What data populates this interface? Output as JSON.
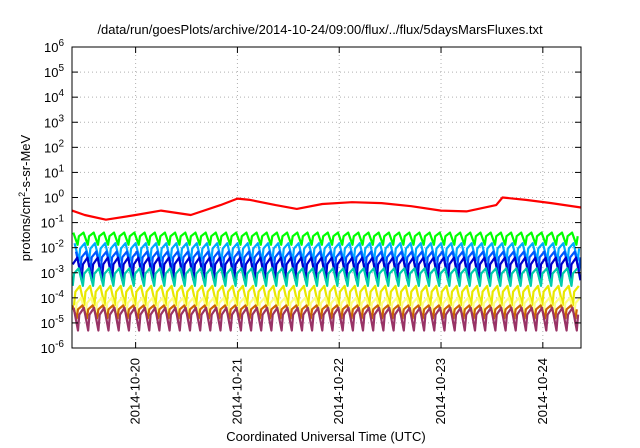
{
  "chart_data": {
    "type": "line",
    "title": "/data/run/goesPlots/archive/2014-10-24/09:00/flux/../flux/5daysMarsFluxes.txt",
    "xlabel": "Coordinated Universal Time (UTC)",
    "ylabel": {
      "base": "protons/cm",
      "sup": "2",
      "rest": "-s-sr-MeV"
    },
    "yscale": "log",
    "ylim": [
      1e-06,
      1000000.0
    ],
    "xlim": [
      "2014-10-19 09:00",
      "2014-10-24 09:00"
    ],
    "y_ticks": [
      {
        "value": 1e-06,
        "base": "10",
        "exp": "-6"
      },
      {
        "value": 1e-05,
        "base": "10",
        "exp": "-5"
      },
      {
        "value": 0.0001,
        "base": "10",
        "exp": "-4"
      },
      {
        "value": 0.001,
        "base": "10",
        "exp": "-3"
      },
      {
        "value": 0.01,
        "base": "10",
        "exp": "-2"
      },
      {
        "value": 0.1,
        "base": "10",
        "exp": "-1"
      },
      {
        "value": 1.0,
        "base": "10",
        "exp": "0"
      },
      {
        "value": 10.0,
        "base": "10",
        "exp": "1"
      },
      {
        "value": 100.0,
        "base": "10",
        "exp": "2"
      },
      {
        "value": 1000.0,
        "base": "10",
        "exp": "3"
      },
      {
        "value": 10000.0,
        "base": "10",
        "exp": "4"
      },
      {
        "value": 100000.0,
        "base": "10",
        "exp": "5"
      },
      {
        "value": 1000000.0,
        "base": "10",
        "exp": "6"
      }
    ],
    "x_ticks": [
      {
        "value": "2014-10-20 00:00",
        "label": "2014-10-20"
      },
      {
        "value": "2014-10-21 00:00",
        "label": "2014-10-21"
      },
      {
        "value": "2014-10-22 00:00",
        "label": "2014-10-22"
      },
      {
        "value": "2014-10-23 00:00",
        "label": "2014-10-23"
      },
      {
        "value": "2014-10-24 00:00",
        "label": "2014-10-24"
      }
    ],
    "grid": true,
    "legend": "none",
    "series": [
      {
        "color": "#ff0000",
        "values": [
          {
            "t": "2014-10-19 09:00",
            "y": 0.3
          },
          {
            "t": "2014-10-19 12:00",
            "y": 0.2
          },
          {
            "t": "2014-10-19 17:00",
            "y": 0.13
          },
          {
            "t": "2014-10-20 00:00",
            "y": 0.2
          },
          {
            "t": "2014-10-20 06:00",
            "y": 0.3
          },
          {
            "t": "2014-10-20 13:00",
            "y": 0.2
          },
          {
            "t": "2014-10-20 20:00",
            "y": 0.5
          },
          {
            "t": "2014-10-21 00:00",
            "y": 0.9
          },
          {
            "t": "2014-10-21 03:00",
            "y": 0.8
          },
          {
            "t": "2014-10-21 09:00",
            "y": 0.5
          },
          {
            "t": "2014-10-21 14:00",
            "y": 0.35
          },
          {
            "t": "2014-10-21 20:00",
            "y": 0.55
          },
          {
            "t": "2014-10-22 03:00",
            "y": 0.65
          },
          {
            "t": "2014-10-22 10:00",
            "y": 0.6
          },
          {
            "t": "2014-10-22 17:00",
            "y": 0.45
          },
          {
            "t": "2014-10-23 00:00",
            "y": 0.3
          },
          {
            "t": "2014-10-23 06:00",
            "y": 0.28
          },
          {
            "t": "2014-10-23 13:00",
            "y": 0.5
          },
          {
            "t": "2014-10-23 14:30",
            "y": 1.0
          },
          {
            "t": "2014-10-23 20:00",
            "y": 0.8
          },
          {
            "t": "2014-10-24 02:00",
            "y": 0.6
          },
          {
            "t": "2014-10-24 09:00",
            "y": 0.4
          }
        ]
      },
      {
        "color": "#00ff00",
        "min": 0.013,
        "max": 0.04
      },
      {
        "color": "#00aaff",
        "min": 0.003,
        "max": 0.015
      },
      {
        "color": "#0055ff",
        "min": 0.0012,
        "max": 0.007
      },
      {
        "color": "#0000cc",
        "min": 0.0005,
        "max": 0.004
      },
      {
        "color": "#00ccaa",
        "min": 0.0003,
        "max": 0.0015
      },
      {
        "color": "#e8e800",
        "min": 5e-05,
        "max": 0.0003
      },
      {
        "color": "#ffff80",
        "min": 2e-05,
        "max": 0.0001
      },
      {
        "color": "#cc6600",
        "min": 1.5e-05,
        "max": 5e-05
      },
      {
        "color": "#993366",
        "min": 5e-06,
        "max": 4e-05
      }
    ],
    "cycles_per_day": 10
  }
}
